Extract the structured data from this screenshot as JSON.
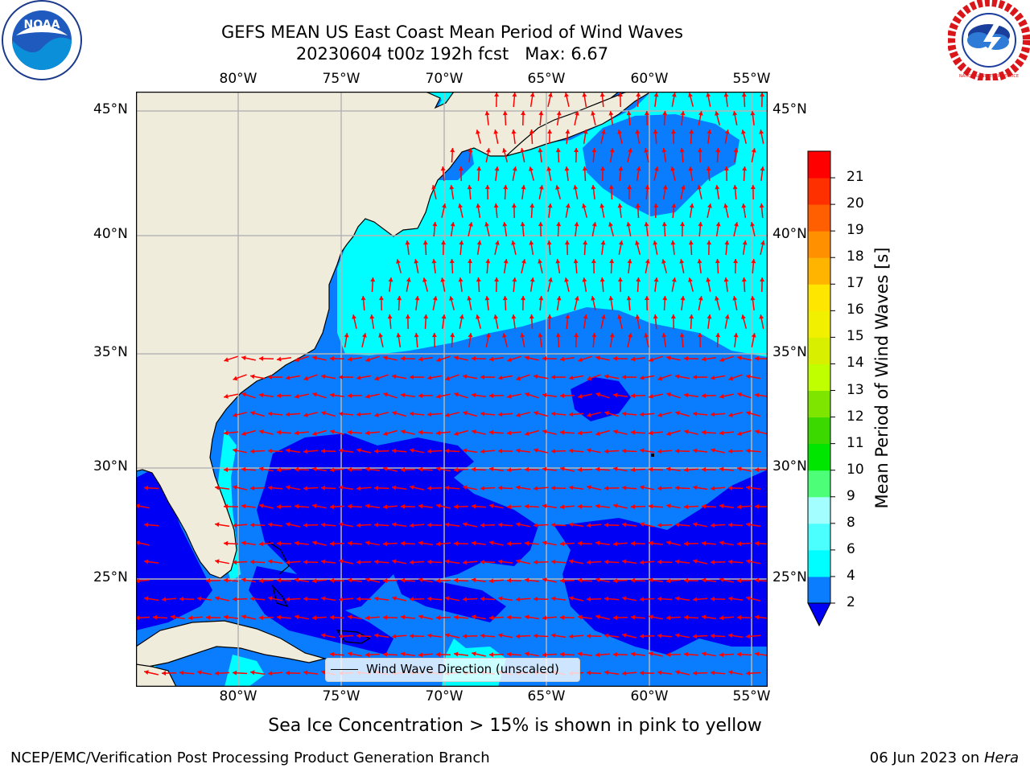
{
  "title": {
    "line1": "GEFS MEAN US East Coast Mean Period of Wind Waves",
    "line2": "20230604 t00z 192h fcst   Max: 6.67"
  },
  "logos": {
    "left": "NOAA",
    "right": "NATIONAL WEATHER SERVICE"
  },
  "map": {
    "lon_ticks": [
      "80°W",
      "75°W",
      "70°W",
      "65°W",
      "60°W",
      "55°W"
    ],
    "lat_ticks": [
      "45°N",
      "40°N",
      "35°N",
      "30°N",
      "25°N"
    ],
    "legend_label": "Wind Wave Direction (unscaled)",
    "colors": {
      "land": "#efecdc",
      "band_2_4": "#0a7dff",
      "band_4_6": "#00fdff",
      "band_lt_2": "#0000f5",
      "arrow": "#ff0000",
      "grid": "#b5b5b5"
    }
  },
  "colorbar": {
    "title": "Mean Period of Wind Waves [s]",
    "ticks": [
      "2",
      "4",
      "6",
      "8",
      "9",
      "10",
      "11",
      "12",
      "13",
      "14",
      "15",
      "16",
      "17",
      "18",
      "19",
      "20",
      "21"
    ],
    "colors": [
      "#0a7dff",
      "#00fdff",
      "#4cffff",
      "#a3ffff",
      "#4dff78",
      "#00e600",
      "#3cd900",
      "#7de500",
      "#bfff00",
      "#d9ef00",
      "#f0f000",
      "#ffe600",
      "#ffb400",
      "#ff9000",
      "#ff5f00",
      "#ff3000",
      "#ff0000"
    ],
    "extend_color": "#0000f5"
  },
  "notes": {
    "sea_ice": "Sea Ice Concentration > 15% is shown in pink to yellow",
    "branch": "NCEP/EMC/Verification Post Processing Product Generation Branch",
    "date": "06 Jun 2023 on ",
    "machine": "Hera"
  }
}
